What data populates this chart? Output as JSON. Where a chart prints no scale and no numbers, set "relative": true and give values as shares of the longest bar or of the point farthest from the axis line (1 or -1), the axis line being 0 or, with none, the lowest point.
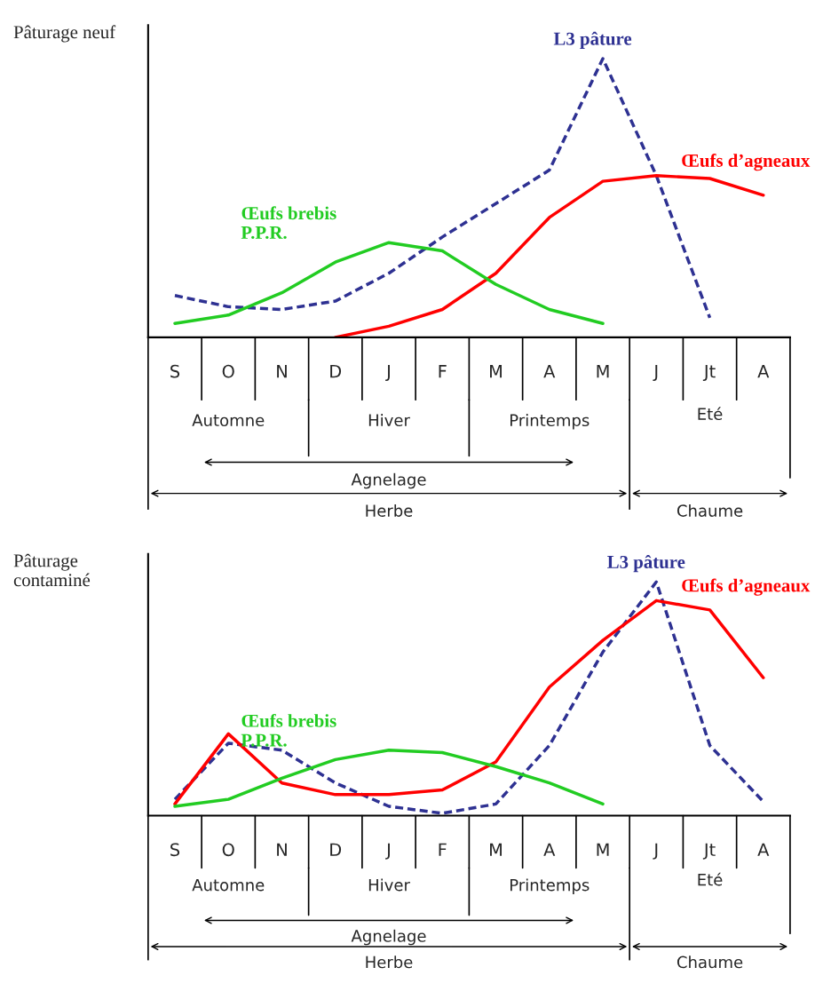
{
  "chart_data": [
    {
      "type": "line",
      "relative": true,
      "ylabel": "Pâturage neuf",
      "categories": [
        "S",
        "O",
        "N",
        "D",
        "J",
        "F",
        "M",
        "A",
        "M",
        "J",
        "Jt",
        "A"
      ],
      "series": [
        {
          "name": "L3 pâture",
          "color": "#2e3192",
          "line_style": "dashed",
          "values": [
            0.15,
            0.11,
            0.1,
            0.13,
            0.23,
            0.36,
            0.48,
            0.6,
            1.0,
            0.58,
            0.07,
            null
          ]
        },
        {
          "name": "Œufs d’agneaux",
          "color": "#ff0000",
          "line_style": "solid",
          "values": [
            null,
            null,
            null,
            0.0,
            0.04,
            0.1,
            0.23,
            0.43,
            0.56,
            0.58,
            0.57,
            0.51
          ]
        },
        {
          "name": "Œufs brebis\nP.P.R.",
          "color": "#22cc22",
          "line_style": "solid",
          "values": [
            0.05,
            0.08,
            0.16,
            0.27,
            0.34,
            0.31,
            0.19,
            0.1,
            0.05,
            null,
            null,
            null
          ]
        }
      ],
      "annotations": [
        "Automne",
        "Hiver",
        "Printemps",
        "Eté",
        "Agnelage",
        "Herbe",
        "Chaume"
      ],
      "legend": false,
      "grid": false
    },
    {
      "type": "line",
      "relative": true,
      "ylabel": "Pâturage\ncontaminé",
      "categories": [
        "S",
        "O",
        "N",
        "D",
        "J",
        "F",
        "M",
        "A",
        "M",
        "J",
        "Jt",
        "A"
      ],
      "series": [
        {
          "name": "L3 pâture",
          "color": "#2e3192",
          "line_style": "dashed",
          "values": [
            0.07,
            0.31,
            0.28,
            0.14,
            0.04,
            0.01,
            0.05,
            0.3,
            0.7,
            1.0,
            0.3,
            0.06
          ]
        },
        {
          "name": "Œufs d’agneaux",
          "color": "#ff0000",
          "line_style": "solid",
          "values": [
            0.05,
            0.35,
            0.14,
            0.09,
            0.09,
            0.11,
            0.23,
            0.55,
            0.75,
            0.92,
            0.88,
            0.59
          ]
        },
        {
          "name": "Œufs brebis\nP.P.R.",
          "color": "#22cc22",
          "line_style": "solid",
          "values": [
            0.04,
            0.07,
            0.16,
            0.24,
            0.28,
            0.27,
            0.21,
            0.14,
            0.05,
            null,
            null,
            null
          ]
        }
      ],
      "annotations": [
        "Automne",
        "Hiver",
        "Printemps",
        "Eté",
        "Agnelage",
        "Herbe",
        "Chaume"
      ],
      "legend": false,
      "grid": false
    }
  ]
}
